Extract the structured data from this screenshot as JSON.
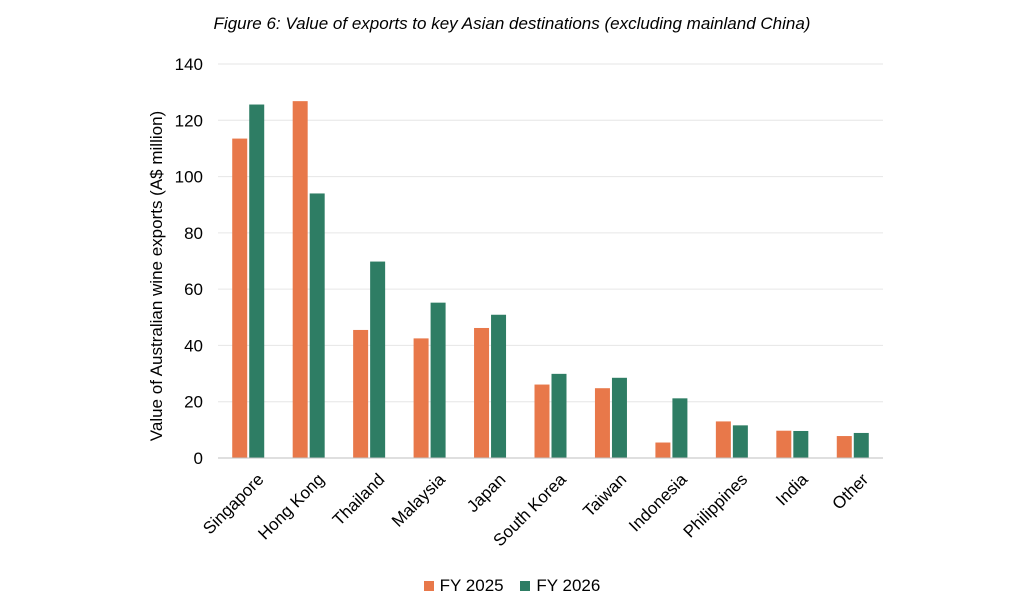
{
  "chart_data": {
    "type": "bar",
    "title": "Figure 6: Value of exports to key Asian destinations (excluding mainland China)",
    "xlabel": "",
    "ylabel": "Value of Australian wine exports (A$ million)",
    "ylim": [
      0,
      140
    ],
    "yticks": [
      0,
      20,
      40,
      60,
      80,
      100,
      120,
      140
    ],
    "grid": true,
    "legend_position": "bottom",
    "categories": [
      "Singapore",
      "Hong Kong",
      "Thailand",
      "Malaysia",
      "Japan",
      "South Korea",
      "Taiwan",
      "Indonesia",
      "Philippines",
      "India",
      "Other"
    ],
    "series": [
      {
        "name": "FY 2025",
        "color": "#E8784A",
        "values": [
          113.5,
          126.8,
          45.5,
          42.5,
          46.2,
          26.1,
          24.8,
          5.5,
          13.0,
          9.7,
          7.8
        ]
      },
      {
        "name": "FY 2026",
        "color": "#2E7D64",
        "values": [
          125.6,
          94.0,
          69.8,
          55.2,
          50.9,
          29.9,
          28.5,
          21.2,
          11.6,
          9.6,
          8.9
        ]
      }
    ]
  }
}
